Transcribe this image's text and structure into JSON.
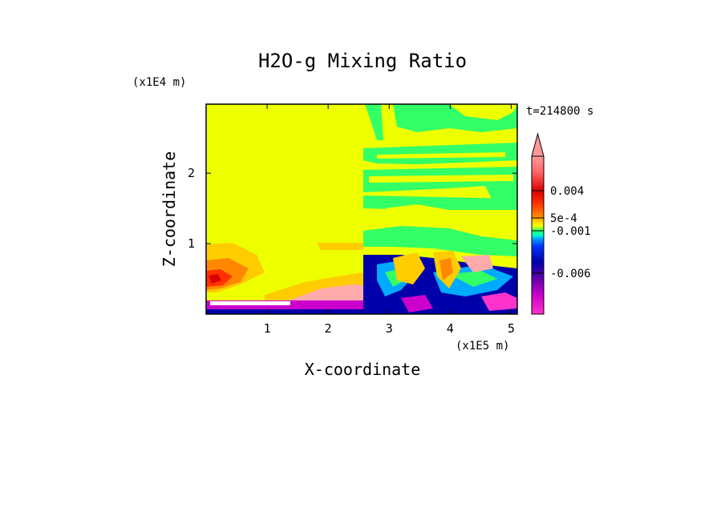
{
  "chart_data": {
    "type": "heatmap",
    "title": "H2O-g Mixing Ratio",
    "xlabel": "X-coordinate",
    "ylabel": "Z-coordinate",
    "x_scale_label": "(x1E5 m)",
    "y_scale_label": "(x1E4 m)",
    "time_label": "t=214800 s",
    "xlim": [
      0.0,
      5.1
    ],
    "ylim": [
      0.0,
      2.98
    ],
    "x_ticks": [
      1,
      2,
      3,
      4,
      5
    ],
    "x_tick_labels": [
      "1",
      "2",
      "3",
      "4",
      "5"
    ],
    "y_ticks": [
      1,
      2
    ],
    "y_tick_labels": [
      "1",
      "2"
    ],
    "colorbar": {
      "labels": [
        "0.004",
        "5e-4",
        "-0.001",
        "-0.006"
      ],
      "label_positions": [
        0.004,
        0.0005,
        -0.001,
        -0.006
      ],
      "colors": [
        "#ff33cc",
        "#cc00cc",
        "#6600aa",
        "#0000aa",
        "#0033ff",
        "#00aaff",
        "#00ffcc",
        "#33ff66",
        "#ffff00",
        "#ffcc00",
        "#ff8800",
        "#ff3300",
        "#dd0000",
        "#ff8888",
        "#ffaaaa"
      ]
    },
    "regions": [
      {
        "x": [
          0.0,
          2.57
        ],
        "z": [
          0.0,
          2.98
        ],
        "level": "#eeff00"
      },
      {
        "x": [
          2.57,
          5.1
        ],
        "z": [
          0.85,
          2.98
        ],
        "level": "#eeff00"
      }
    ]
  }
}
